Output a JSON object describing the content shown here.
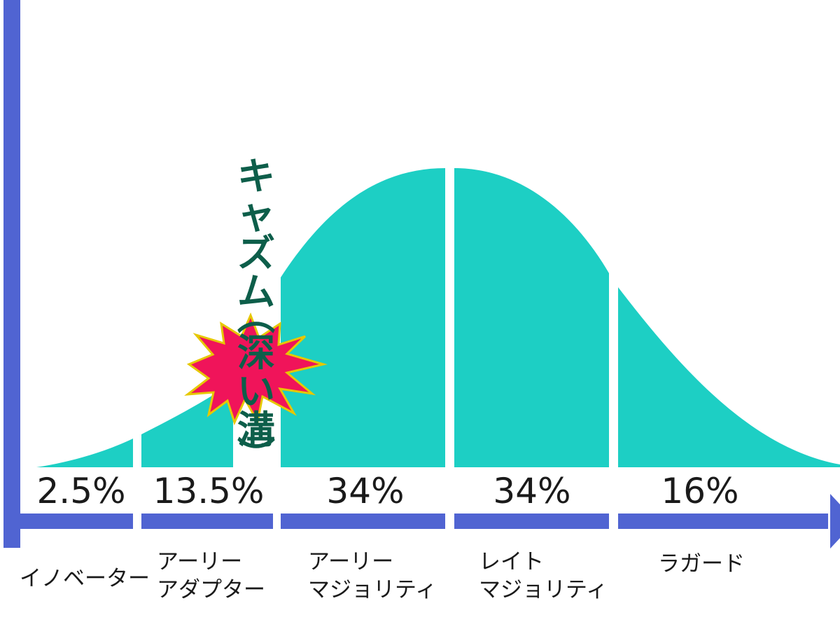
{
  "colors": {
    "curve_fill": "#1dcfc4",
    "axis": "#5064d2",
    "chasm_text": "#0d5e4a",
    "burst_fill": "#f0145a",
    "burst_outline": "#e6c800"
  },
  "chasm": {
    "label_chars": [
      "キ",
      "ャ",
      "ズ",
      "ム"
    ],
    "paren_open": "︵",
    "sub_chars": [
      "深",
      "い",
      "溝"
    ],
    "paren_close": "︶",
    "burst_icon": "explosion-burst-icon"
  },
  "segments": [
    {
      "id": "innovators",
      "percent_value": 2.5,
      "percent": "2.5%",
      "label_lines": [
        "イノベーター"
      ]
    },
    {
      "id": "early-adopters",
      "percent_value": 13.5,
      "percent": "13.5%",
      "label_lines": [
        "アーリー",
        "アダプター"
      ]
    },
    {
      "id": "early-majority",
      "percent_value": 34,
      "percent": "34%",
      "label_lines": [
        "アーリー",
        "マジョリティ"
      ]
    },
    {
      "id": "late-majority",
      "percent_value": 34,
      "percent": "34%",
      "label_lines": [
        "レイト",
        "マジョリティ"
      ]
    },
    {
      "id": "laggards",
      "percent_value": 16,
      "percent": "16%",
      "label_lines": [
        "ラガード"
      ]
    }
  ]
}
